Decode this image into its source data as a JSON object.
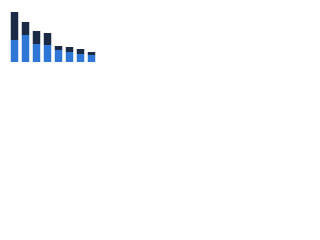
{
  "chart_data": {
    "type": "stacked-bar",
    "categories": [
      null,
      null,
      null,
      null,
      null,
      null,
      null,
      null
    ],
    "series": [
      {
        "color": "#2f77d6",
        "values": [
          22,
          27,
          18,
          17,
          12,
          10,
          8,
          7
        ]
      },
      {
        "color": "#1b2a45",
        "values": [
          28,
          13,
          13,
          12,
          4,
          5,
          5,
          3
        ]
      }
    ],
    "ylim": [
      0,
      52
    ]
  }
}
